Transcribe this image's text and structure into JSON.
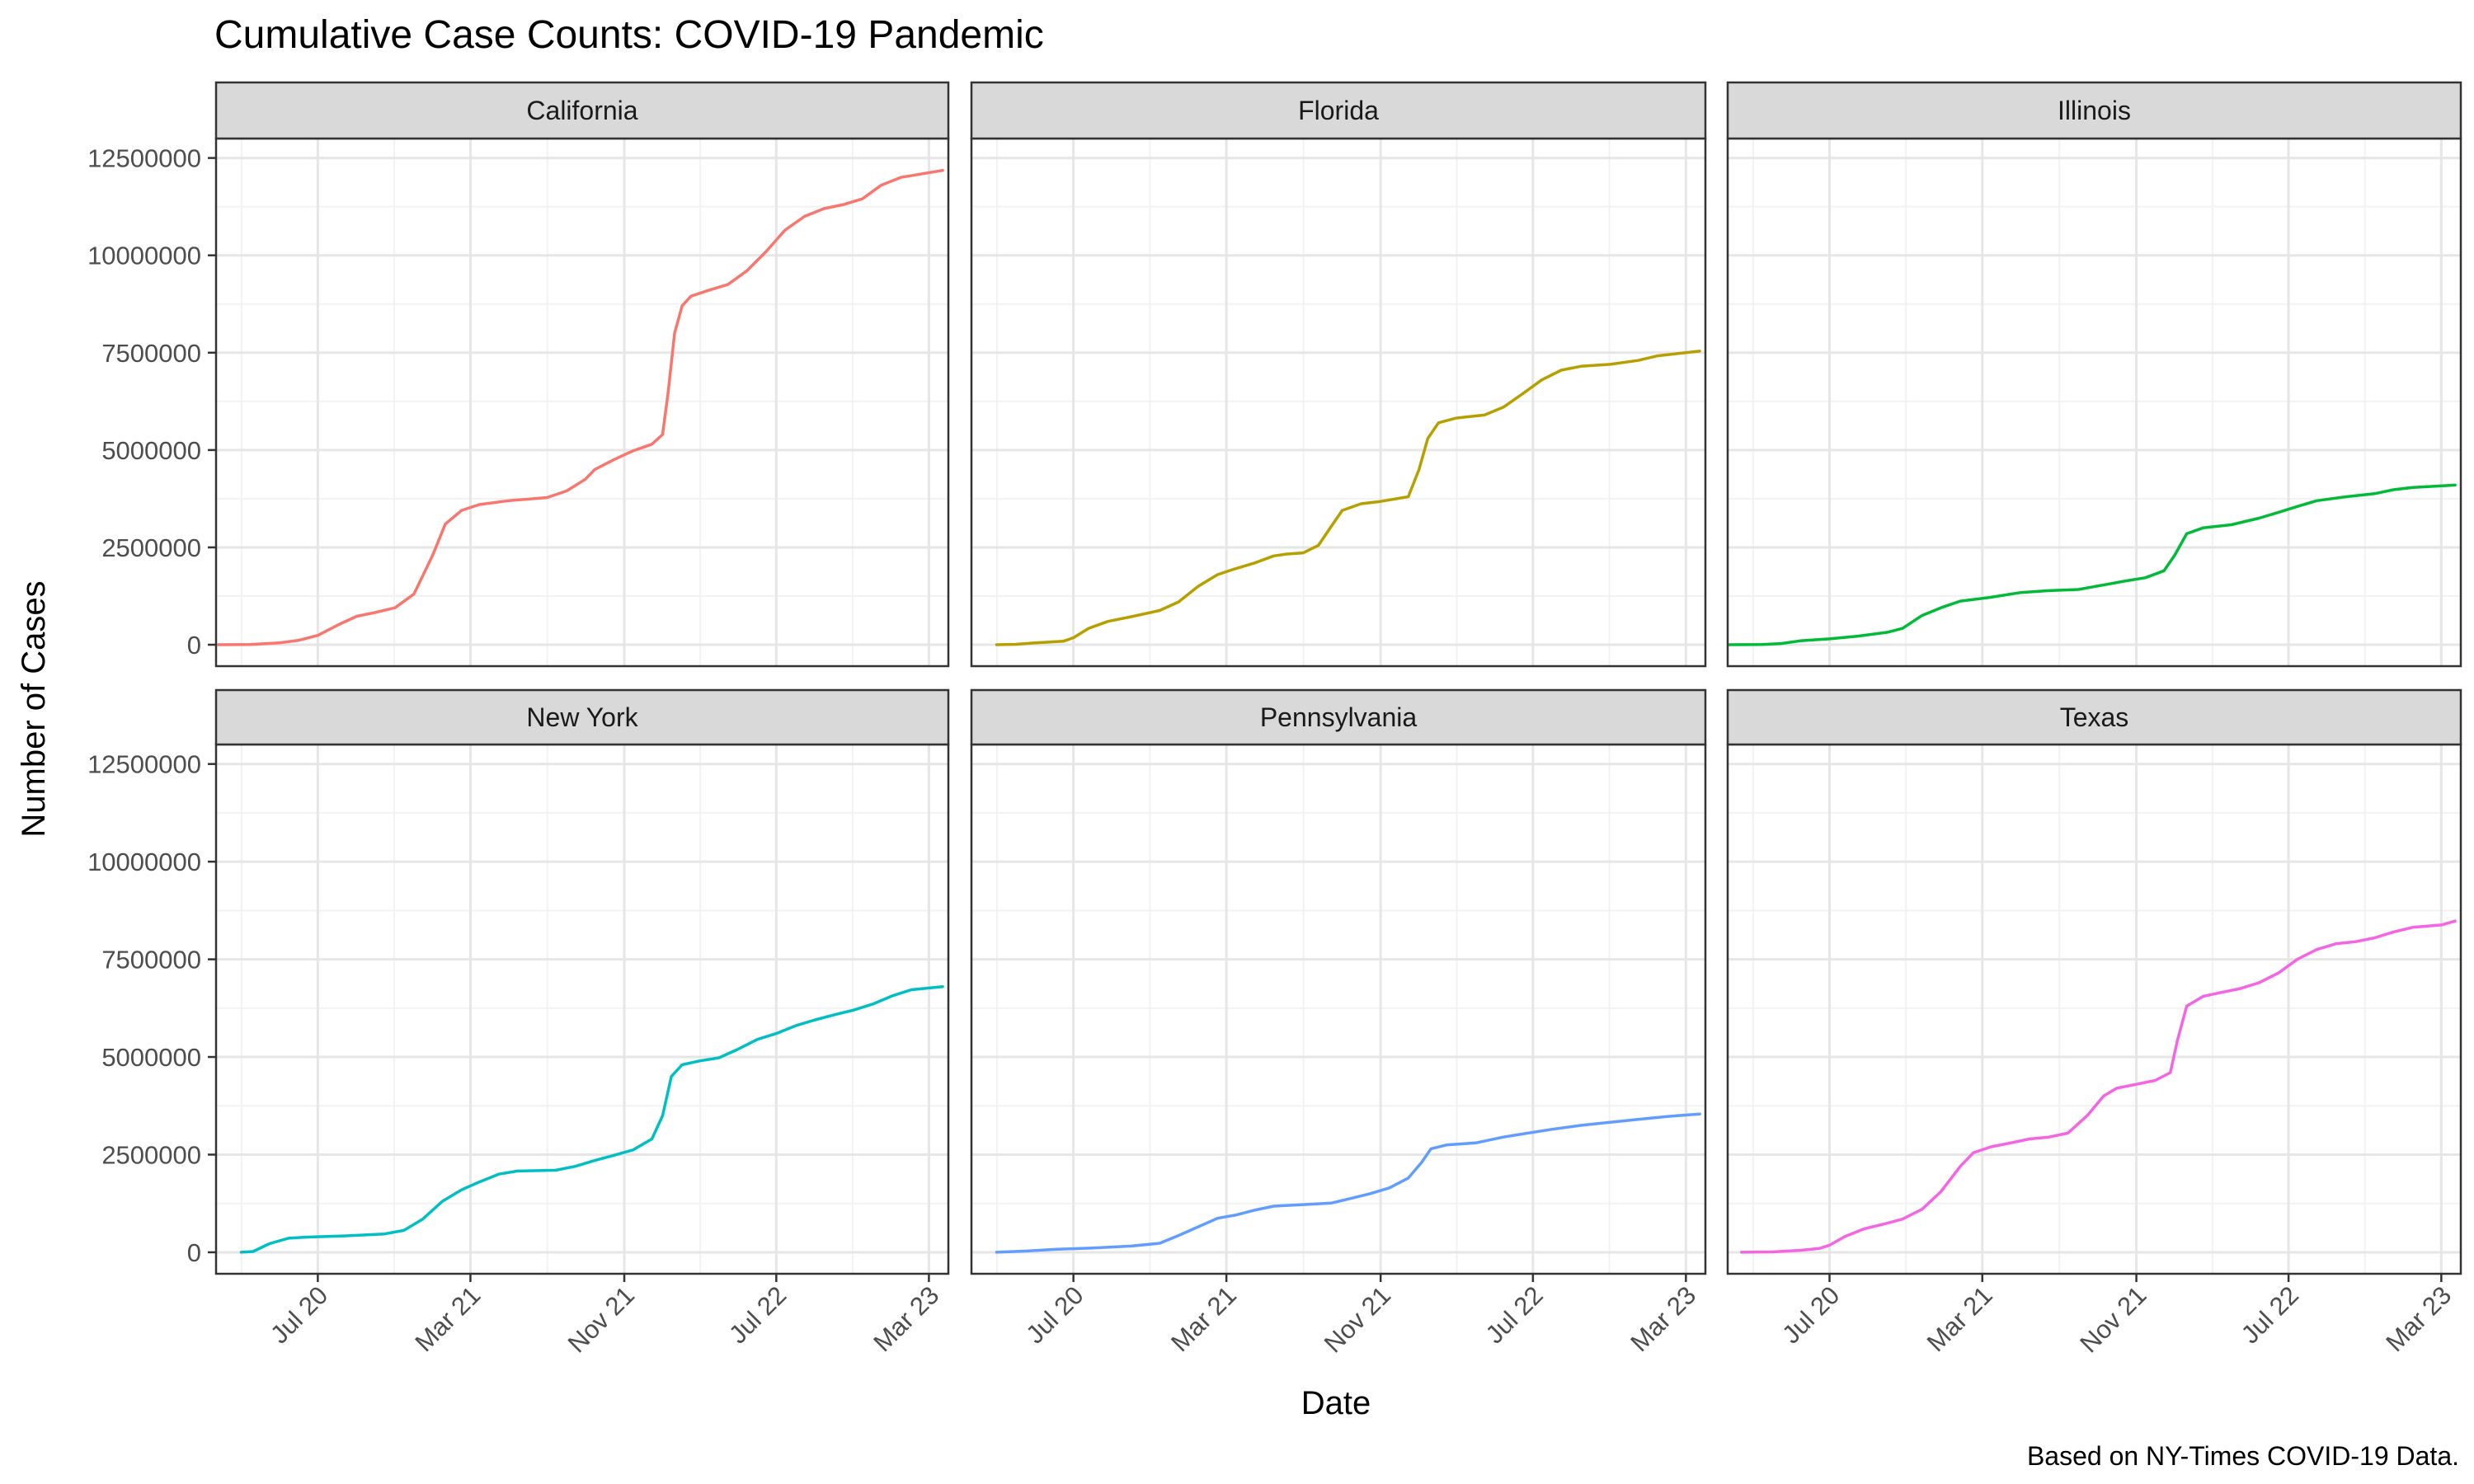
{
  "chart_data": {
    "type": "line",
    "title": "Cumulative Case Counts: COVID-19 Pandemic",
    "xlabel": "Date",
    "ylabel": "Number of Cases",
    "caption": "Based on NY-Times COVID-19 Data.",
    "xlim": [
      "2020-01-21",
      "2023-04-01"
    ],
    "ylim": [
      -550000,
      13000000
    ],
    "x_ticks": [
      {
        "date": "2020-07-01",
        "label": "Jul 20"
      },
      {
        "date": "2021-03-01",
        "label": "Mar 21"
      },
      {
        "date": "2021-11-01",
        "label": "Nov 21"
      },
      {
        "date": "2022-07-01",
        "label": "Jul 22"
      },
      {
        "date": "2023-03-01",
        "label": "Mar 23"
      }
    ],
    "y_ticks": [
      0,
      2500000,
      5000000,
      7500000,
      10000000,
      12500000
    ],
    "y_tick_labels": [
      "0",
      "2500000",
      "5000000",
      "7500000",
      "10000000",
      "12500000"
    ],
    "grid": true,
    "legend": "none",
    "facets": [
      "California",
      "Florida",
      "Illinois",
      "New York",
      "Pennsylvania",
      "Texas"
    ],
    "series": [
      {
        "name": "California",
        "color": "#F8766D",
        "points": [
          [
            "2020-01-25",
            0
          ],
          [
            "2020-03-15",
            5000
          ],
          [
            "2020-05-01",
            50000
          ],
          [
            "2020-06-01",
            115000
          ],
          [
            "2020-07-01",
            240000
          ],
          [
            "2020-08-01",
            500000
          ],
          [
            "2020-09-01",
            730000
          ],
          [
            "2020-10-01",
            830000
          ],
          [
            "2020-11-01",
            950000
          ],
          [
            "2020-12-01",
            1300000
          ],
          [
            "2020-12-31",
            2300000
          ],
          [
            "2021-01-20",
            3100000
          ],
          [
            "2021-02-15",
            3450000
          ],
          [
            "2021-03-15",
            3600000
          ],
          [
            "2021-05-01",
            3700000
          ],
          [
            "2021-07-01",
            3780000
          ],
          [
            "2021-08-01",
            3950000
          ],
          [
            "2021-08-31",
            4250000
          ],
          [
            "2021-09-15",
            4500000
          ],
          [
            "2021-10-15",
            4750000
          ],
          [
            "2021-11-15",
            4980000
          ],
          [
            "2021-12-15",
            5150000
          ],
          [
            "2022-01-01",
            5400000
          ],
          [
            "2022-01-10",
            6500000
          ],
          [
            "2022-01-20",
            8000000
          ],
          [
            "2022-02-01",
            8700000
          ],
          [
            "2022-02-15",
            8950000
          ],
          [
            "2022-03-15",
            9100000
          ],
          [
            "2022-04-15",
            9250000
          ],
          [
            "2022-05-15",
            9600000
          ],
          [
            "2022-06-15",
            10100000
          ],
          [
            "2022-07-15",
            10650000
          ],
          [
            "2022-08-15",
            11000000
          ],
          [
            "2022-09-15",
            11200000
          ],
          [
            "2022-10-15",
            11300000
          ],
          [
            "2022-11-15",
            11450000
          ],
          [
            "2022-12-15",
            11800000
          ],
          [
            "2023-01-15",
            12000000
          ],
          [
            "2023-03-23",
            12180000
          ]
        ]
      },
      {
        "name": "Florida",
        "color": "#B79F00",
        "points": [
          [
            "2020-03-01",
            0
          ],
          [
            "2020-04-01",
            10000
          ],
          [
            "2020-05-01",
            50000
          ],
          [
            "2020-06-15",
            90000
          ],
          [
            "2020-07-01",
            180000
          ],
          [
            "2020-07-25",
            420000
          ],
          [
            "2020-08-25",
            600000
          ],
          [
            "2020-10-01",
            720000
          ],
          [
            "2020-11-15",
            880000
          ],
          [
            "2020-12-15",
            1100000
          ],
          [
            "2021-01-15",
            1500000
          ],
          [
            "2021-02-15",
            1800000
          ],
          [
            "2021-03-15",
            1950000
          ],
          [
            "2021-04-15",
            2100000
          ],
          [
            "2021-05-15",
            2280000
          ],
          [
            "2021-06-05",
            2330000
          ],
          [
            "2021-07-01",
            2360000
          ],
          [
            "2021-07-25",
            2550000
          ],
          [
            "2021-08-15",
            3050000
          ],
          [
            "2021-09-01",
            3450000
          ],
          [
            "2021-10-01",
            3620000
          ],
          [
            "2021-11-01",
            3680000
          ],
          [
            "2021-12-15",
            3800000
          ],
          [
            "2022-01-01",
            4500000
          ],
          [
            "2022-01-15",
            5300000
          ],
          [
            "2022-02-01",
            5700000
          ],
          [
            "2022-03-01",
            5820000
          ],
          [
            "2022-04-15",
            5900000
          ],
          [
            "2022-05-15",
            6100000
          ],
          [
            "2022-06-15",
            6450000
          ],
          [
            "2022-07-15",
            6800000
          ],
          [
            "2022-08-15",
            7050000
          ],
          [
            "2022-09-15",
            7150000
          ],
          [
            "2022-11-01",
            7200000
          ],
          [
            "2022-12-15",
            7300000
          ],
          [
            "2023-01-15",
            7420000
          ],
          [
            "2023-03-23",
            7540000
          ]
        ]
      },
      {
        "name": "Illinois",
        "color": "#00BA38",
        "points": [
          [
            "2020-01-24",
            0
          ],
          [
            "2020-03-15",
            5000
          ],
          [
            "2020-04-15",
            30000
          ],
          [
            "2020-05-15",
            100000
          ],
          [
            "2020-07-01",
            150000
          ],
          [
            "2020-08-15",
            220000
          ],
          [
            "2020-10-01",
            320000
          ],
          [
            "2020-10-25",
            420000
          ],
          [
            "2020-11-25",
            750000
          ],
          [
            "2020-12-25",
            950000
          ],
          [
            "2021-01-25",
            1120000
          ],
          [
            "2021-03-15",
            1220000
          ],
          [
            "2021-05-01",
            1340000
          ],
          [
            "2021-06-15",
            1390000
          ],
          [
            "2021-08-01",
            1420000
          ],
          [
            "2021-09-15",
            1550000
          ],
          [
            "2021-10-15",
            1640000
          ],
          [
            "2021-11-15",
            1720000
          ],
          [
            "2021-12-15",
            1900000
          ],
          [
            "2022-01-01",
            2300000
          ],
          [
            "2022-01-20",
            2850000
          ],
          [
            "2022-02-15",
            3000000
          ],
          [
            "2022-04-01",
            3080000
          ],
          [
            "2022-05-15",
            3250000
          ],
          [
            "2022-06-15",
            3400000
          ],
          [
            "2022-07-15",
            3550000
          ],
          [
            "2022-08-15",
            3700000
          ],
          [
            "2022-10-01",
            3800000
          ],
          [
            "2022-11-15",
            3880000
          ],
          [
            "2022-12-15",
            3980000
          ],
          [
            "2023-01-15",
            4040000
          ],
          [
            "2023-03-23",
            4100000
          ]
        ]
      },
      {
        "name": "New York",
        "color": "#00BFC4",
        "points": [
          [
            "2020-03-01",
            0
          ],
          [
            "2020-03-20",
            20000
          ],
          [
            "2020-04-15",
            220000
          ],
          [
            "2020-05-15",
            360000
          ],
          [
            "2020-06-15",
            390000
          ],
          [
            "2020-08-15",
            420000
          ],
          [
            "2020-10-15",
            470000
          ],
          [
            "2020-11-15",
            560000
          ],
          [
            "2020-12-15",
            850000
          ],
          [
            "2021-01-15",
            1300000
          ],
          [
            "2021-02-15",
            1600000
          ],
          [
            "2021-03-15",
            1800000
          ],
          [
            "2021-04-15",
            2000000
          ],
          [
            "2021-05-15",
            2080000
          ],
          [
            "2021-07-15",
            2100000
          ],
          [
            "2021-08-15",
            2200000
          ],
          [
            "2021-09-15",
            2350000
          ],
          [
            "2021-10-15",
            2480000
          ],
          [
            "2021-11-15",
            2620000
          ],
          [
            "2021-12-15",
            2900000
          ],
          [
            "2022-01-01",
            3500000
          ],
          [
            "2022-01-15",
            4500000
          ],
          [
            "2022-02-01",
            4800000
          ],
          [
            "2022-03-01",
            4900000
          ],
          [
            "2022-04-01",
            4980000
          ],
          [
            "2022-05-01",
            5200000
          ],
          [
            "2022-06-01",
            5450000
          ],
          [
            "2022-07-01",
            5600000
          ],
          [
            "2022-08-01",
            5800000
          ],
          [
            "2022-09-01",
            5950000
          ],
          [
            "2022-10-01",
            6080000
          ],
          [
            "2022-11-01",
            6200000
          ],
          [
            "2022-12-01",
            6350000
          ],
          [
            "2023-01-01",
            6560000
          ],
          [
            "2023-02-01",
            6720000
          ],
          [
            "2023-03-23",
            6800000
          ]
        ]
      },
      {
        "name": "Pennsylvania",
        "color": "#619CFF",
        "points": [
          [
            "2020-03-01",
            0
          ],
          [
            "2020-04-15",
            30000
          ],
          [
            "2020-06-01",
            75000
          ],
          [
            "2020-08-01",
            110000
          ],
          [
            "2020-10-01",
            160000
          ],
          [
            "2020-11-15",
            230000
          ],
          [
            "2020-12-15",
            430000
          ],
          [
            "2021-01-15",
            650000
          ],
          [
            "2021-02-15",
            870000
          ],
          [
            "2021-03-15",
            950000
          ],
          [
            "2021-04-15",
            1080000
          ],
          [
            "2021-05-15",
            1180000
          ],
          [
            "2021-07-01",
            1220000
          ],
          [
            "2021-08-15",
            1260000
          ],
          [
            "2021-09-15",
            1380000
          ],
          [
            "2021-10-15",
            1500000
          ],
          [
            "2021-11-15",
            1650000
          ],
          [
            "2021-12-15",
            1900000
          ],
          [
            "2022-01-05",
            2300000
          ],
          [
            "2022-01-20",
            2650000
          ],
          [
            "2022-02-15",
            2750000
          ],
          [
            "2022-04-01",
            2800000
          ],
          [
            "2022-05-15",
            2950000
          ],
          [
            "2022-06-15",
            3030000
          ],
          [
            "2022-08-01",
            3150000
          ],
          [
            "2022-09-15",
            3250000
          ],
          [
            "2022-11-01",
            3330000
          ],
          [
            "2022-12-15",
            3400000
          ],
          [
            "2023-02-01",
            3480000
          ],
          [
            "2023-03-23",
            3540000
          ]
        ]
      },
      {
        "name": "Texas",
        "color": "#F564E3",
        "points": [
          [
            "2020-02-12",
            0
          ],
          [
            "2020-04-01",
            10000
          ],
          [
            "2020-05-15",
            50000
          ],
          [
            "2020-06-15",
            100000
          ],
          [
            "2020-07-01",
            180000
          ],
          [
            "2020-07-25",
            400000
          ],
          [
            "2020-08-25",
            600000
          ],
          [
            "2020-09-25",
            720000
          ],
          [
            "2020-10-25",
            850000
          ],
          [
            "2020-11-25",
            1100000
          ],
          [
            "2020-12-25",
            1550000
          ],
          [
            "2021-01-25",
            2200000
          ],
          [
            "2021-02-15",
            2550000
          ],
          [
            "2021-03-15",
            2700000
          ],
          [
            "2021-04-15",
            2800000
          ],
          [
            "2021-05-15",
            2900000
          ],
          [
            "2021-06-15",
            2950000
          ],
          [
            "2021-07-15",
            3050000
          ],
          [
            "2021-08-15",
            3500000
          ],
          [
            "2021-09-10",
            4000000
          ],
          [
            "2021-10-01",
            4200000
          ],
          [
            "2021-11-01",
            4300000
          ],
          [
            "2021-12-01",
            4400000
          ],
          [
            "2021-12-25",
            4600000
          ],
          [
            "2022-01-05",
            5400000
          ],
          [
            "2022-01-20",
            6300000
          ],
          [
            "2022-02-15",
            6550000
          ],
          [
            "2022-03-15",
            6650000
          ],
          [
            "2022-04-15",
            6750000
          ],
          [
            "2022-05-15",
            6900000
          ],
          [
            "2022-06-15",
            7150000
          ],
          [
            "2022-07-15",
            7500000
          ],
          [
            "2022-08-15",
            7750000
          ],
          [
            "2022-09-15",
            7900000
          ],
          [
            "2022-10-15",
            7950000
          ],
          [
            "2022-11-15",
            8050000
          ],
          [
            "2022-12-15",
            8200000
          ],
          [
            "2023-01-15",
            8320000
          ],
          [
            "2023-03-01",
            8380000
          ],
          [
            "2023-03-23",
            8480000
          ]
        ]
      }
    ]
  }
}
